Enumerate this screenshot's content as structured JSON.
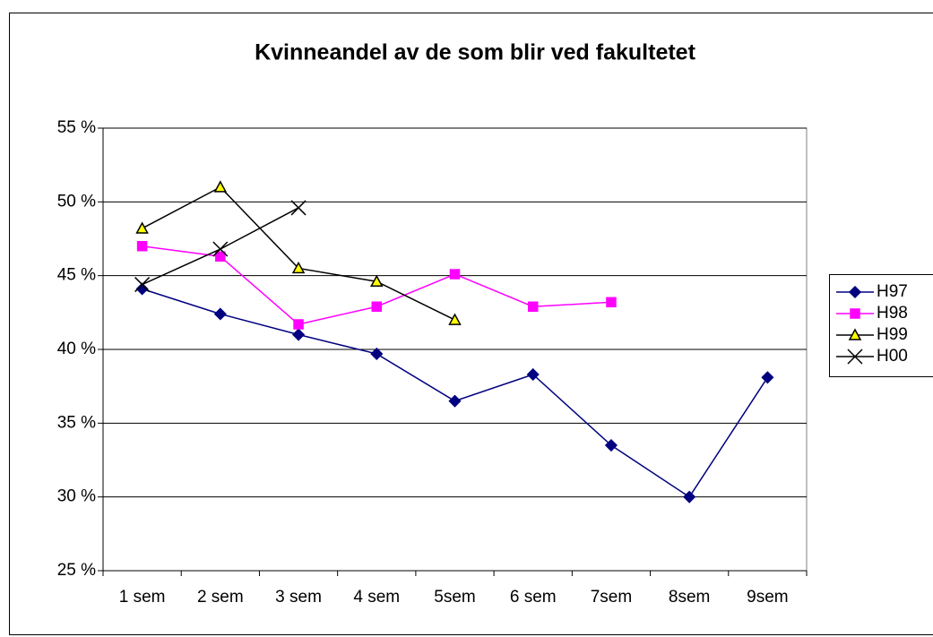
{
  "chart_data": {
    "type": "line",
    "title": "Kvinneandel av de som blir ved fakultetet",
    "categories": [
      "1 sem",
      "2 sem",
      "3 sem",
      "4 sem",
      "5sem",
      "6 sem",
      "7sem",
      "8sem",
      "9sem"
    ],
    "series": [
      {
        "name": "H97",
        "color": "#000080",
        "marker": "diamond",
        "marker_fill": "#000080",
        "values": [
          44.1,
          42.4,
          41.0,
          39.7,
          36.5,
          38.3,
          33.5,
          30.0,
          38.1
        ]
      },
      {
        "name": "H98",
        "color": "#ff00ff",
        "marker": "square",
        "marker_fill": "#ff00ff",
        "values": [
          47.0,
          46.3,
          41.7,
          42.9,
          45.1,
          42.9,
          43.2,
          null,
          null
        ]
      },
      {
        "name": "H99",
        "color": "#000000",
        "marker": "triangle",
        "marker_fill": "#ffff00",
        "values": [
          48.2,
          51.0,
          45.5,
          44.6,
          42.0,
          null,
          null,
          null,
          null
        ]
      },
      {
        "name": "H00",
        "color": "#000000",
        "marker": "x",
        "marker_fill": "none",
        "values": [
          44.4,
          46.8,
          49.6,
          null,
          null,
          null,
          null,
          null,
          null
        ]
      }
    ],
    "ylim": [
      25,
      55
    ],
    "yticks": [
      {
        "value": 25,
        "label": "25 %"
      },
      {
        "value": 30,
        "label": "30 %"
      },
      {
        "value": 35,
        "label": "35 %"
      },
      {
        "value": 40,
        "label": "40 %"
      },
      {
        "value": 45,
        "label": "45 %"
      },
      {
        "value": 50,
        "label": "50 %"
      },
      {
        "value": 55,
        "label": "55 %"
      }
    ],
    "grid": true,
    "legend": "right"
  }
}
